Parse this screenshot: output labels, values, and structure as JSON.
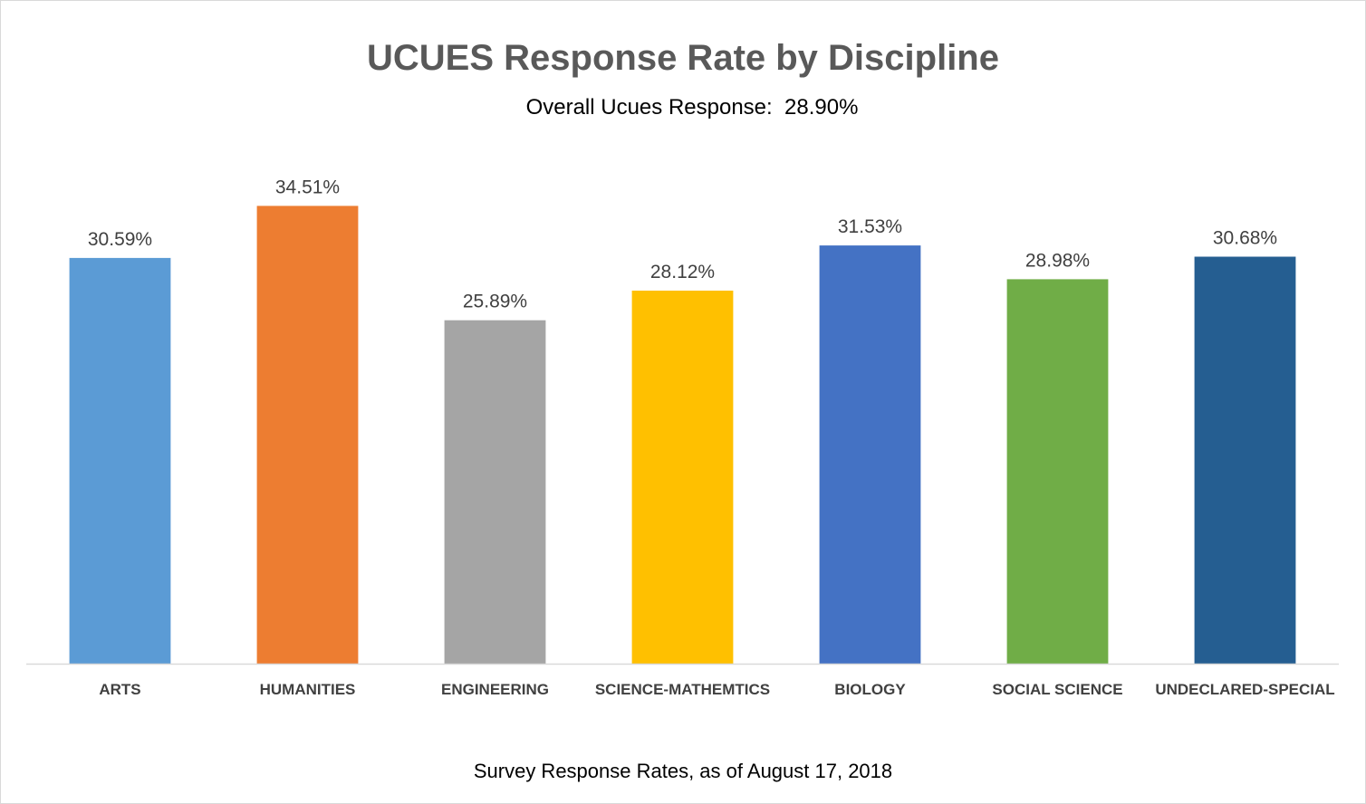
{
  "chart_data": {
    "type": "bar",
    "title": "UCUES Response Rate by Discipline",
    "subtitle": "Overall Ucues Response:  28.90%",
    "caption": "Survey Response Rates, as of August 17, 2018",
    "categories": [
      "ARTS",
      "HUMANITIES",
      "ENGINEERING",
      "SCIENCE-MATHEMTICS",
      "BIOLOGY",
      "SOCIAL SCIENCE",
      "UNDECLARED-SPECIAL"
    ],
    "values": [
      30.59,
      34.51,
      25.89,
      28.12,
      31.53,
      28.98,
      30.68
    ],
    "data_labels": [
      "30.59%",
      "34.51%",
      "25.89%",
      "28.12%",
      "31.53%",
      "28.98%",
      "30.68%"
    ],
    "colors": [
      "#5b9bd5",
      "#ed7d31",
      "#a5a5a5",
      "#ffc000",
      "#4472c4",
      "#70ad47",
      "#255e91"
    ],
    "ylim": [
      0,
      40
    ],
    "grid": false,
    "legend": false,
    "xlabel": "",
    "ylabel": ""
  }
}
